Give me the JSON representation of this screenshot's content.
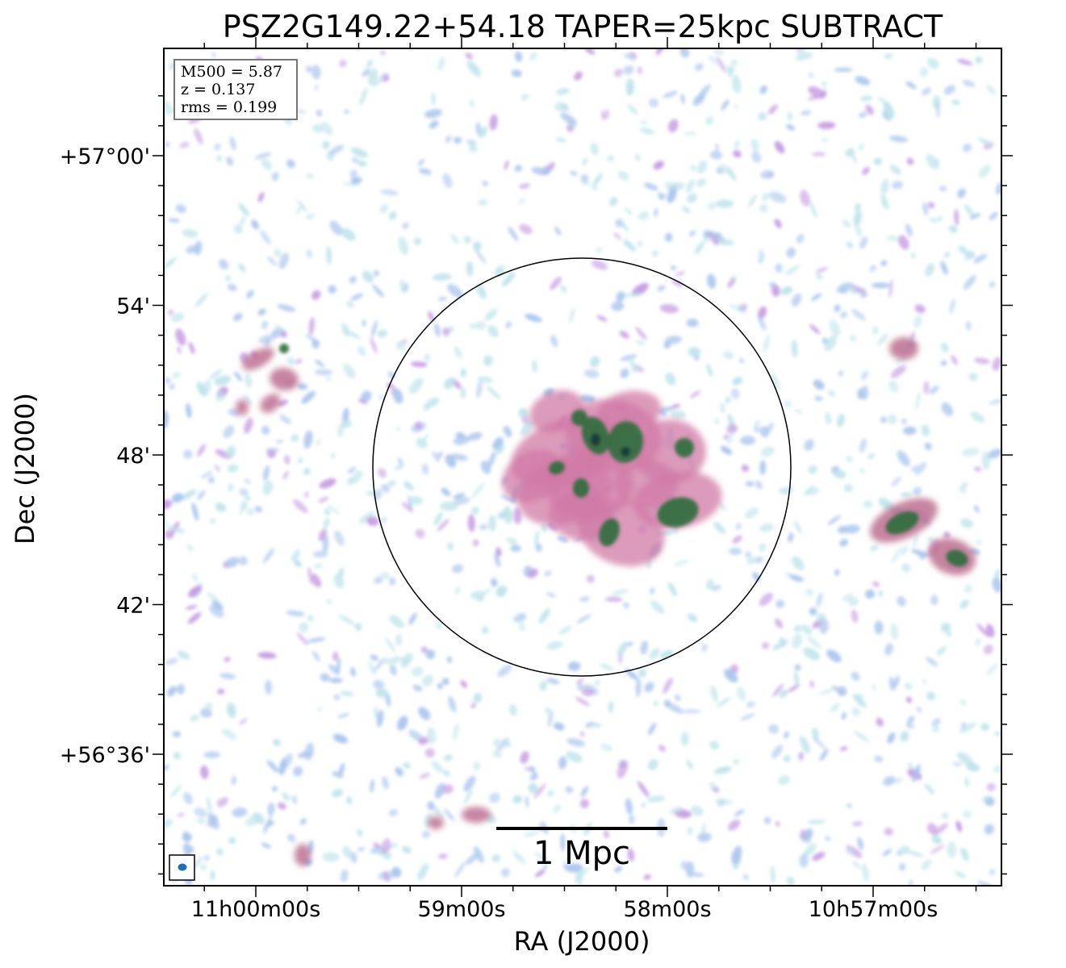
{
  "figure": {
    "title": "PSZ2G149.22+54.18 TAPER=25kpc SUBTRACT",
    "x_axis_label": "RA (J2000)",
    "y_axis_label": "Dec (J2000)"
  },
  "x_ticks": [
    {
      "label": "11h00m00s",
      "ra_deg": 165.0
    },
    {
      "label": "59m00s",
      "ra_deg": 164.75
    },
    {
      "label": "58m00s",
      "ra_deg": 164.5
    },
    {
      "label": "10h57m00s",
      "ra_deg": 164.25
    }
  ],
  "y_ticks": [
    {
      "label": "+57°00'",
      "dec_deg": 57.0
    },
    {
      "label": "54'",
      "dec_deg": 56.9
    },
    {
      "label": "48'",
      "dec_deg": 56.8
    },
    {
      "label": "42'",
      "dec_deg": 56.7
    },
    {
      "label": "+56°36'",
      "dec_deg": 56.6
    }
  ],
  "info_box": {
    "mass_line": "M500 = 5.87",
    "redshift_line": "z = 0.137",
    "rms_line": "rms = 0.199"
  },
  "scale_bar": {
    "label": "1 Mpc"
  },
  "colors": {
    "noise_light": "#bfe3ea",
    "noise_blue": "#a9c4ec",
    "noise_purple": "#c49ae0",
    "emission_pink": "#d07aa6",
    "emission_rose": "#b9668a",
    "emission_green": "#2f6b3a",
    "emission_dark": "#143a3a",
    "beam": "#1f6fb5"
  }
}
